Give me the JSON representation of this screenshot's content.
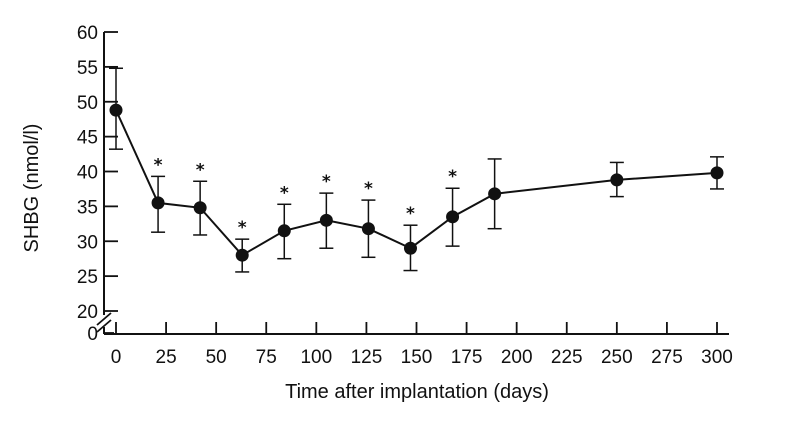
{
  "chart_data": {
    "type": "line",
    "title": "",
    "xlabel": "Time after implantation (days)",
    "ylabel": "SHBG (nmol/l)",
    "xlim": [
      0,
      300
    ],
    "ylim": [
      20,
      60
    ],
    "x_ticks": [
      0,
      25,
      50,
      75,
      100,
      125,
      150,
      175,
      200,
      225,
      250,
      275,
      300
    ],
    "y_ticks": [
      20,
      25,
      30,
      35,
      40,
      45,
      50,
      55,
      60
    ],
    "y_zero_label": "0",
    "axis_break": true,
    "significance_marker": "*",
    "series": [
      {
        "name": "SHBG",
        "x": [
          0,
          21,
          42,
          63,
          84,
          105,
          126,
          147,
          168,
          189,
          250,
          300
        ],
        "y": [
          48.8,
          35.5,
          34.8,
          28.0,
          31.5,
          33.0,
          31.8,
          29.0,
          33.5,
          36.8,
          38.8,
          39.8
        ],
        "err_upper": [
          54.8,
          39.3,
          38.6,
          30.3,
          35.3,
          36.9,
          35.9,
          32.3,
          37.6,
          41.8,
          41.3,
          42.1
        ],
        "err_lower": [
          43.2,
          31.3,
          30.9,
          25.6,
          27.5,
          29.0,
          27.7,
          25.8,
          29.3,
          31.8,
          36.4,
          37.5
        ],
        "significant": [
          false,
          true,
          true,
          true,
          true,
          true,
          true,
          true,
          true,
          false,
          false,
          false
        ]
      }
    ]
  }
}
